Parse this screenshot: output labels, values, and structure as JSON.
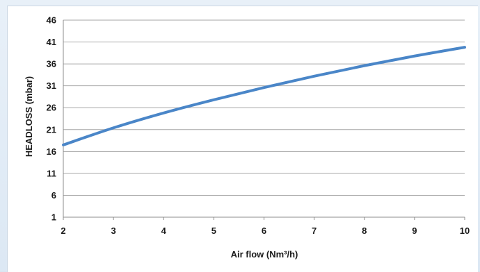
{
  "chart_data": {
    "type": "line",
    "title": "",
    "xlabel": "Air flow (Nm³/h)",
    "ylabel": "HEADLOSS (mbar)",
    "xlim": [
      2,
      10
    ],
    "ylim": [
      1,
      46
    ],
    "x_ticks": [
      "2",
      "3",
      "4",
      "5",
      "6",
      "7",
      "8",
      "9",
      "10"
    ],
    "y_ticks": [
      "1",
      "6",
      "11",
      "16",
      "21",
      "26",
      "31",
      "36",
      "41",
      "46"
    ],
    "grid": "horizontal",
    "series": [
      {
        "color": "#4a86c8",
        "x": [
          2,
          3,
          4,
          5,
          6,
          7,
          8,
          9,
          10
        ],
        "y": [
          17.5,
          21.4,
          24.8,
          27.8,
          30.6,
          33.2,
          35.6,
          37.8,
          39.8
        ]
      }
    ]
  }
}
